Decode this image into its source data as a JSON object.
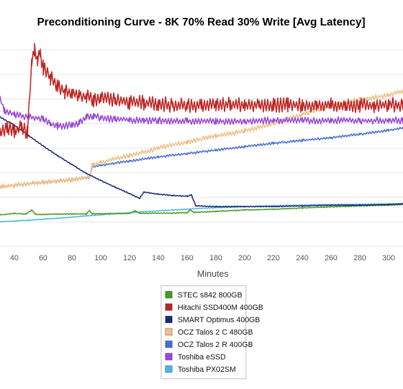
{
  "chart_data": {
    "type": "line",
    "title": "Preconditioning Curve - 8K 70% Read 30% Write [Avg Latency]",
    "xlabel": "Minutes",
    "ylabel": "",
    "xlim": [
      30,
      310
    ],
    "x_ticks": [
      40,
      60,
      80,
      100,
      120,
      140,
      160,
      180,
      200,
      220,
      240,
      260,
      280,
      300
    ],
    "y_axis_labels_visible": false,
    "grid": "horizontal",
    "legend_position": "bottom-center",
    "series": [
      {
        "name": "STEC s842 800GB",
        "color": "#4a9a21",
        "points": [
          [
            30,
            4.6
          ],
          [
            40,
            4.8
          ],
          [
            48,
            4.7
          ],
          [
            52,
            5.3
          ],
          [
            55,
            4.65
          ],
          [
            70,
            4.7
          ],
          [
            80,
            4.72
          ],
          [
            90,
            4.72
          ],
          [
            92,
            5.2
          ],
          [
            94,
            4.75
          ],
          [
            120,
            4.8
          ],
          [
            124,
            5.2
          ],
          [
            127,
            4.82
          ],
          [
            150,
            4.85
          ],
          [
            160,
            4.9
          ],
          [
            162,
            5.3
          ],
          [
            165,
            4.95
          ],
          [
            180,
            5.1
          ],
          [
            200,
            5.3
          ],
          [
            220,
            5.4
          ],
          [
            240,
            5.6
          ],
          [
            260,
            5.75
          ],
          [
            280,
            5.9
          ],
          [
            300,
            6.0
          ],
          [
            310,
            6.1
          ]
        ]
      },
      {
        "name": "Hitachi SSD400M 400GB",
        "color": "#be2424",
        "points": [
          [
            30,
            16.5
          ],
          [
            35,
            17.4
          ],
          [
            40,
            16.6
          ],
          [
            45,
            17.3
          ],
          [
            49,
            16.6
          ],
          [
            52,
            26.8
          ],
          [
            54,
            28.4
          ],
          [
            56,
            27.0
          ],
          [
            58,
            28.0
          ],
          [
            60,
            26.0
          ],
          [
            65,
            24.5
          ],
          [
            70,
            23.5
          ],
          [
            75,
            22.5
          ],
          [
            80,
            22.3
          ],
          [
            85,
            22.0
          ],
          [
            90,
            21.8
          ],
          [
            95,
            21.4
          ],
          [
            100,
            21.5
          ],
          [
            110,
            21.2
          ],
          [
            120,
            21.0
          ],
          [
            130,
            20.9
          ],
          [
            140,
            20.7
          ],
          [
            150,
            20.6
          ],
          [
            160,
            20.4
          ],
          [
            170,
            20.5
          ],
          [
            180,
            20.5
          ],
          [
            190,
            20.6
          ],
          [
            200,
            20.5
          ],
          [
            210,
            20.6
          ],
          [
            220,
            20.5
          ],
          [
            230,
            20.6
          ],
          [
            240,
            20.5
          ],
          [
            250,
            20.6
          ],
          [
            260,
            20.6
          ],
          [
            270,
            20.5
          ],
          [
            280,
            20.6
          ],
          [
            290,
            20.5
          ],
          [
            300,
            20.6
          ],
          [
            310,
            20.5
          ]
        ]
      },
      {
        "name": "SMART Optimus 400GB",
        "color": "#1a2a78",
        "points": [
          [
            30,
            18.8
          ],
          [
            40,
            17.6
          ],
          [
            50,
            16.1
          ],
          [
            60,
            14.6
          ],
          [
            70,
            13.2
          ],
          [
            80,
            11.9
          ],
          [
            90,
            10.6
          ],
          [
            100,
            9.6
          ],
          [
            110,
            8.6
          ],
          [
            120,
            7.7
          ],
          [
            127,
            7.0
          ],
          [
            130,
            7.9
          ],
          [
            140,
            7.6
          ],
          [
            150,
            7.4
          ],
          [
            160,
            7.3
          ],
          [
            163,
            7.5
          ],
          [
            166,
            5.9
          ],
          [
            180,
            5.8
          ],
          [
            200,
            5.8
          ],
          [
            220,
            5.8
          ],
          [
            240,
            5.9
          ],
          [
            260,
            6.0
          ],
          [
            280,
            6.0
          ],
          [
            300,
            6.1
          ],
          [
            310,
            6.2
          ]
        ]
      },
      {
        "name": "OCZ Talos 2 C 480GB",
        "color": "#f0c088",
        "points": [
          [
            30,
            8.7
          ],
          [
            40,
            8.9
          ],
          [
            60,
            9.3
          ],
          [
            80,
            9.7
          ],
          [
            92,
            10.0
          ],
          [
            94,
            11.8
          ],
          [
            100,
            12.2
          ],
          [
            120,
            13.2
          ],
          [
            140,
            14.3
          ],
          [
            160,
            15.2
          ],
          [
            180,
            16.0
          ],
          [
            200,
            16.8
          ],
          [
            220,
            17.9
          ],
          [
            240,
            19.2
          ],
          [
            260,
            20.4
          ],
          [
            280,
            21.3
          ],
          [
            300,
            22.0
          ],
          [
            310,
            22.6
          ]
        ]
      },
      {
        "name": "OCZ Talos 2 R 400GB",
        "color": "#4a6fd8",
        "points": [
          [
            30,
            8.7
          ],
          [
            40,
            8.9
          ],
          [
            60,
            9.3
          ],
          [
            80,
            9.7
          ],
          [
            92,
            10.0
          ],
          [
            94,
            11.5
          ],
          [
            100,
            11.8
          ],
          [
            120,
            12.4
          ],
          [
            140,
            13.0
          ],
          [
            160,
            13.5
          ],
          [
            180,
            14.0
          ],
          [
            200,
            14.5
          ],
          [
            220,
            15.0
          ],
          [
            240,
            15.4
          ],
          [
            260,
            15.8
          ],
          [
            280,
            16.3
          ],
          [
            300,
            16.9
          ],
          [
            310,
            17.2
          ]
        ]
      },
      {
        "name": "Toshiba eSSD",
        "color": "#9a4ad8",
        "points": [
          [
            30,
            21.5
          ],
          [
            33,
            19.8
          ],
          [
            40,
            19.2
          ],
          [
            50,
            18.8
          ],
          [
            60,
            18.6
          ],
          [
            65,
            17.8
          ],
          [
            70,
            17.5
          ],
          [
            80,
            17.6
          ],
          [
            85,
            17.9
          ],
          [
            90,
            19.0
          ],
          [
            95,
            18.9
          ],
          [
            100,
            18.7
          ],
          [
            110,
            18.5
          ],
          [
            120,
            18.4
          ],
          [
            130,
            18.3
          ],
          [
            140,
            18.3
          ],
          [
            160,
            18.2
          ],
          [
            180,
            18.2
          ],
          [
            200,
            18.2
          ],
          [
            220,
            18.3
          ],
          [
            240,
            18.3
          ],
          [
            260,
            18.3
          ],
          [
            280,
            18.3
          ],
          [
            300,
            18.3
          ],
          [
            310,
            18.3
          ]
        ]
      },
      {
        "name": "Toshiba PX02SM",
        "color": "#4ab8e0",
        "points": [
          [
            30,
            3.6
          ],
          [
            50,
            3.8
          ],
          [
            70,
            4.1
          ],
          [
            90,
            4.45
          ],
          [
            110,
            4.75
          ],
          [
            130,
            5.05
          ],
          [
            150,
            5.3
          ],
          [
            170,
            5.55
          ],
          [
            190,
            5.7
          ],
          [
            210,
            5.85
          ],
          [
            230,
            5.95
          ],
          [
            250,
            6.05
          ],
          [
            270,
            6.1
          ],
          [
            290,
            6.15
          ],
          [
            310,
            6.2
          ]
        ]
      }
    ]
  }
}
